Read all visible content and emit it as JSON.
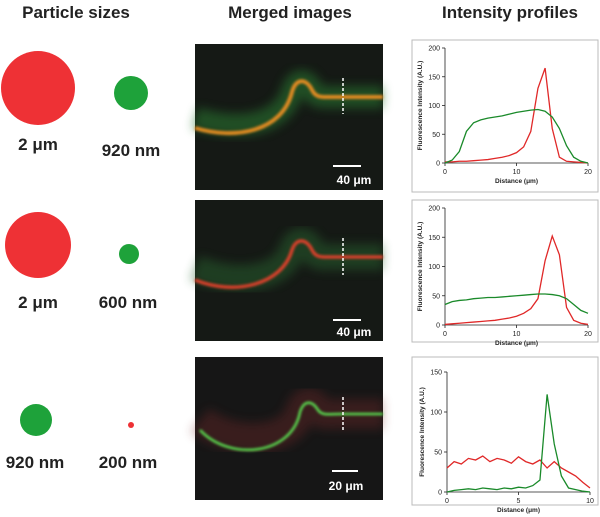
{
  "headers": [
    "Particle sizes",
    "Merged images",
    "Intensity profiles"
  ],
  "rows": [
    {
      "particles": [
        "2 μm",
        "920 nm"
      ],
      "scale_bar": "40 μm"
    },
    {
      "particles": [
        "2 μm",
        "600 nm"
      ],
      "scale_bar": "40 μm"
    },
    {
      "particles": [
        "920 nm",
        "200 nm"
      ],
      "scale_bar": "20 μm"
    }
  ],
  "chart_data": [
    {
      "type": "line",
      "ylabel": "Fluorescence Intensity (A.U.)",
      "xlabel": "Distance (μm)",
      "xlim": [
        0,
        20
      ],
      "xticks": [
        0,
        10,
        20
      ],
      "ylim": [
        0,
        200
      ],
      "yticks": [
        0,
        50,
        100,
        150,
        200
      ],
      "x": [
        0,
        1,
        2,
        3,
        4,
        5,
        6,
        7,
        8,
        9,
        10,
        11,
        12,
        13,
        14,
        15,
        16,
        17,
        18,
        19,
        20
      ],
      "series": [
        {
          "color": "#e02828",
          "values": [
            2,
            2,
            3,
            3,
            4,
            5,
            6,
            8,
            10,
            13,
            18,
            28,
            55,
            130,
            165,
            60,
            10,
            3,
            2,
            1,
            0
          ]
        },
        {
          "color": "#1a8a2a",
          "values": [
            0,
            5,
            20,
            55,
            70,
            75,
            78,
            80,
            82,
            85,
            88,
            90,
            92,
            93,
            90,
            80,
            60,
            30,
            10,
            3,
            0
          ]
        }
      ]
    },
    {
      "type": "line",
      "ylabel": "Fluorescence Intensity (A.U.)",
      "xlabel": "Distance (μm)",
      "xlim": [
        0,
        20
      ],
      "xticks": [
        0,
        10,
        20
      ],
      "ylim": [
        0,
        200
      ],
      "yticks": [
        0,
        50,
        100,
        150,
        200
      ],
      "x": [
        0,
        1,
        2,
        3,
        4,
        5,
        6,
        7,
        8,
        9,
        10,
        11,
        12,
        13,
        14,
        15,
        16,
        17,
        18,
        19,
        20
      ],
      "series": [
        {
          "color": "#e02828",
          "values": [
            1,
            2,
            3,
            4,
            5,
            6,
            7,
            8,
            10,
            12,
            15,
            20,
            28,
            45,
            110,
            152,
            120,
            30,
            8,
            3,
            1
          ]
        },
        {
          "color": "#1a8a2a",
          "values": [
            35,
            40,
            42,
            43,
            45,
            46,
            47,
            47,
            48,
            49,
            50,
            51,
            52,
            53,
            53,
            52,
            50,
            45,
            35,
            25,
            20
          ]
        }
      ]
    },
    {
      "type": "line",
      "ylabel": "Fluorescence Intensity (A.U.)",
      "xlabel": "Distance (μm)",
      "xlim": [
        0,
        10
      ],
      "xticks": [
        0,
        5,
        10
      ],
      "ylim": [
        0,
        150
      ],
      "yticks": [
        0,
        50,
        100,
        150
      ],
      "x": [
        0,
        0.5,
        1,
        1.5,
        2,
        2.5,
        3,
        3.5,
        4,
        4.5,
        5,
        5.5,
        6,
        6.5,
        7,
        7.5,
        8,
        8.5,
        9,
        9.5,
        10
      ],
      "series": [
        {
          "color": "#e02828",
          "values": [
            30,
            38,
            35,
            42,
            40,
            45,
            38,
            42,
            40,
            36,
            44,
            38,
            35,
            40,
            30,
            38,
            30,
            25,
            20,
            12,
            5
          ]
        },
        {
          "color": "#1a8a2a",
          "values": [
            0,
            2,
            3,
            4,
            3,
            5,
            4,
            3,
            5,
            4,
            6,
            5,
            8,
            15,
            122,
            60,
            20,
            5,
            3,
            1,
            0
          ]
        }
      ]
    }
  ]
}
